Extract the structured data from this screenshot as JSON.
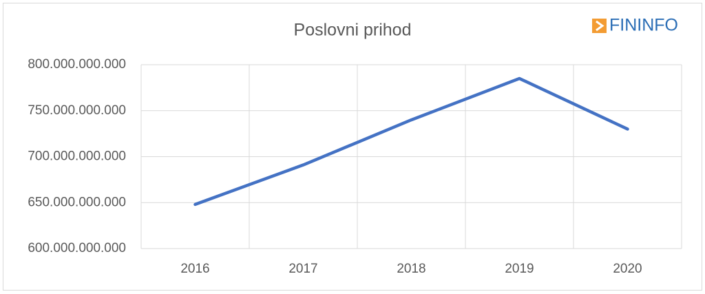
{
  "chart_data": {
    "type": "line",
    "title": "Poslovni prihod",
    "logo": "FININFO",
    "categories": [
      "2016",
      "2017",
      "2018",
      "2019",
      "2020"
    ],
    "series": [
      {
        "name": "Poslovni prihod",
        "color": "#4472c4",
        "values": [
          648000000000,
          691000000000,
          740000000000,
          785000000000,
          730000000000
        ]
      }
    ],
    "ylim": [
      600000000000,
      800000000000
    ],
    "yticks": [
      {
        "value": 600000000000,
        "label": "600.000.000.000"
      },
      {
        "value": 650000000000,
        "label": "650.000.000.000"
      },
      {
        "value": 700000000000,
        "label": "700.000.000.000"
      },
      {
        "value": 750000000000,
        "label": "750.000.000.000"
      },
      {
        "value": 800000000000,
        "label": "800.000.000.000"
      }
    ],
    "grid": true
  }
}
